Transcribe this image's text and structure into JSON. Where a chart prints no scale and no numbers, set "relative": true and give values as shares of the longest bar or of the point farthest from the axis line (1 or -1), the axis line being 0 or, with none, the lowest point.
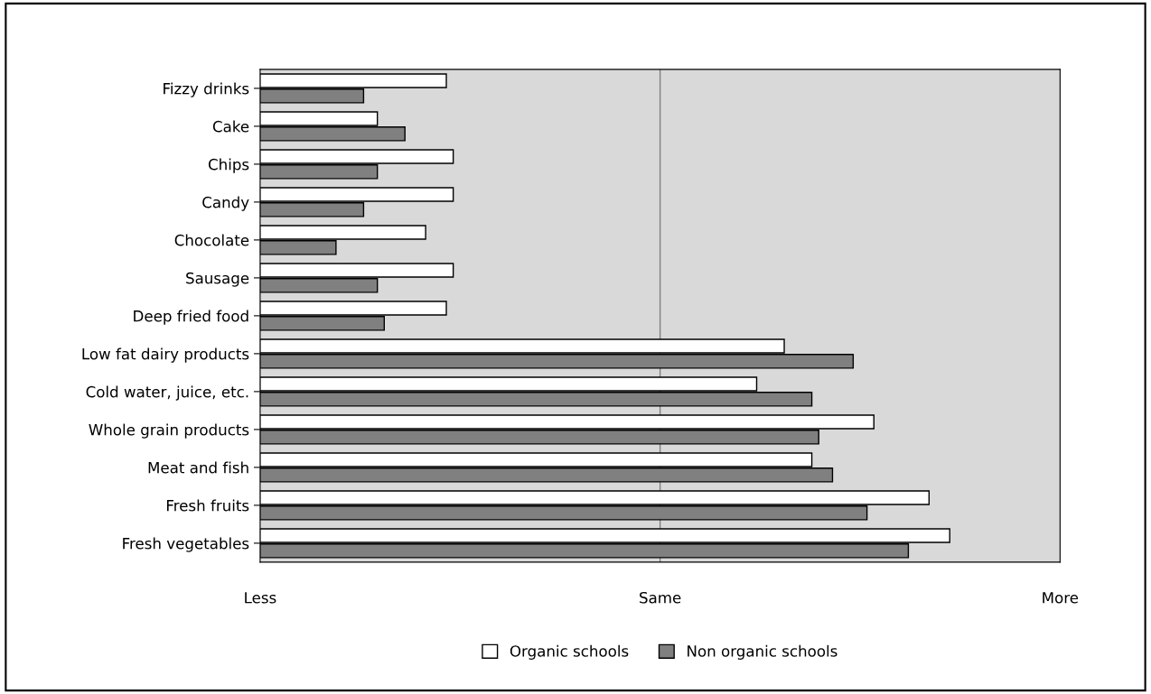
{
  "chart_data": {
    "type": "bar",
    "orientation": "horizontal",
    "relative": true,
    "categories": [
      "Fizzy drinks",
      "Cake",
      "Chips",
      "Candy",
      "Chocolate",
      "Sausage",
      "Deep fried food",
      "Low fat dairy products",
      "Cold water, juice, etc.",
      "Whole grain products",
      "Meat and fish",
      "Fresh fruits",
      "Fresh vegetables"
    ],
    "series": [
      {
        "name": "Organic schools",
        "color": "#ffffff",
        "values": [
          0.27,
          0.17,
          0.28,
          0.28,
          0.24,
          0.28,
          0.27,
          0.76,
          0.72,
          0.89,
          0.8,
          0.97,
          1.0
        ]
      },
      {
        "name": "Non organic schools",
        "color": "#808080",
        "values": [
          0.15,
          0.21,
          0.17,
          0.15,
          0.11,
          0.17,
          0.18,
          0.86,
          0.8,
          0.81,
          0.83,
          0.88,
          0.94
        ]
      }
    ],
    "ref_lines": [
      {
        "axis": "x",
        "value": 0.58,
        "color": "#808080"
      }
    ],
    "annotations": [
      "Less",
      "Same",
      "More"
    ],
    "legend": "bottom"
  }
}
